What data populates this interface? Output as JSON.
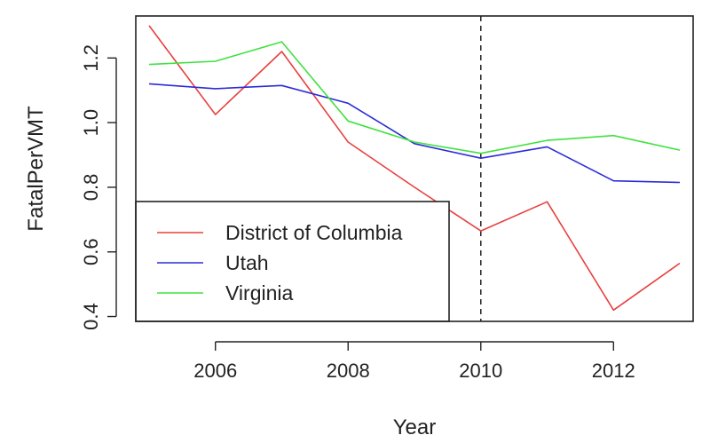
{
  "chart_data": {
    "type": "line",
    "title": "",
    "xlabel": "Year",
    "ylabel": "FatalPerVMT",
    "x": [
      2005,
      2006,
      2007,
      2008,
      2009,
      2010,
      2011,
      2012,
      2013
    ],
    "xlim": [
      2004.8,
      2013.2
    ],
    "ylim": [
      0.385,
      1.33
    ],
    "x_ticks": [
      2006,
      2008,
      2010,
      2012
    ],
    "x_tick_labels": [
      "2006",
      "2008",
      "2010",
      "2012"
    ],
    "y_ticks": [
      0.4,
      0.6,
      0.8,
      1.0,
      1.2
    ],
    "y_tick_labels": [
      "0.4",
      "0.6",
      "0.8",
      "1.0",
      "1.2"
    ],
    "vline": {
      "x": 2010,
      "style": "dashed"
    },
    "grid": false,
    "legend_position": "bottom-left",
    "series": [
      {
        "name": "District of Columbia",
        "color": "#e8403f",
        "values": [
          1.3,
          1.025,
          1.22,
          0.94,
          0.8,
          0.665,
          0.755,
          0.42,
          0.565
        ]
      },
      {
        "name": "Utah",
        "color": "#2b2bd9",
        "values": [
          1.12,
          1.105,
          1.115,
          1.06,
          0.935,
          0.89,
          0.925,
          0.82,
          0.815
        ]
      },
      {
        "name": "Virginia",
        "color": "#3fe23f",
        "values": [
          1.18,
          1.19,
          1.25,
          1.005,
          0.94,
          0.905,
          0.945,
          0.96,
          0.915
        ]
      }
    ]
  }
}
